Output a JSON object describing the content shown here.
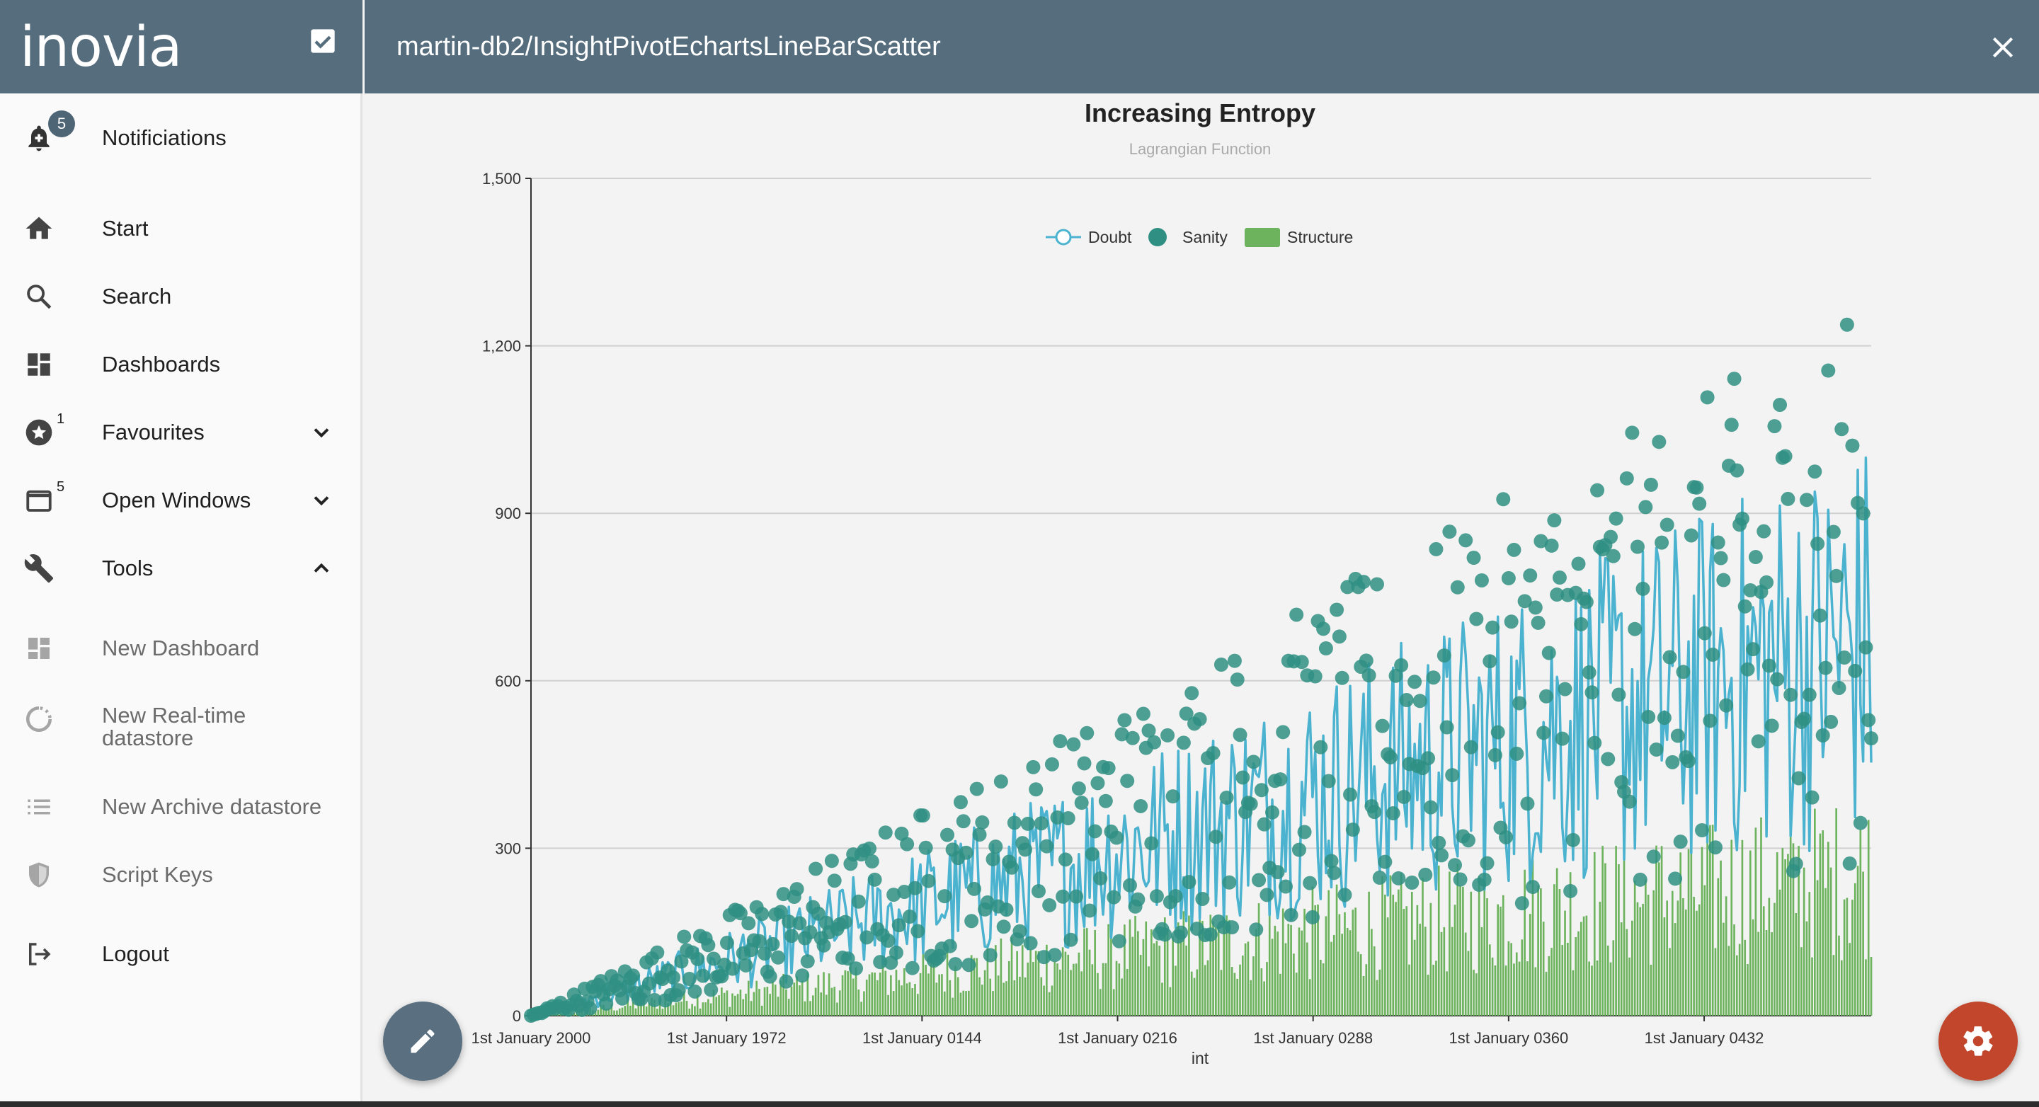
{
  "sidebar": {
    "logo": "inovia",
    "notifications": {
      "label": "Notificiations",
      "badge": "5"
    },
    "items": [
      {
        "label": "Start",
        "icon": "home-icon"
      },
      {
        "label": "Search",
        "icon": "search-icon"
      },
      {
        "label": "Dashboards",
        "icon": "dashboard-icon"
      },
      {
        "label": "Favourites",
        "icon": "star-icon",
        "badge": "1"
      },
      {
        "label": "Open Windows",
        "icon": "window-icon",
        "badge": "5"
      },
      {
        "label": "Tools",
        "icon": "wrench-icon"
      }
    ],
    "tools": [
      {
        "label": "New Dashboard",
        "icon": "dashboard-icon"
      },
      {
        "label": "New Real-time datastore",
        "line1": "New Real-time",
        "line2": "datastore",
        "icon": "refresh-icon"
      },
      {
        "label": "New Archive datastore",
        "icon": "list-icon"
      },
      {
        "label": "Script Keys",
        "icon": "shield-icon"
      }
    ],
    "logout": "Logout"
  },
  "header": {
    "title": "martin-db2/InsightPivotEchartsLineBarScatter"
  },
  "colors": {
    "header_bg": "#566d7d",
    "doubt": "#4bb3cf",
    "sanity": "#2f8f83",
    "structure": "#6db35e",
    "settings_fab": "#c2462b"
  },
  "chart_data": {
    "type": "line",
    "title": "Increasing Entropy",
    "subtitle": "Lagrangian Function",
    "xlabel": "int",
    "ylabel": "",
    "ylim": [
      0,
      1500
    ],
    "yticks": [
      "0",
      "300",
      "600",
      "900",
      "1,200",
      "1,500"
    ],
    "xticks": [
      "1st January 2000",
      "1st January 1972",
      "1st January 0144",
      "1st January 0216",
      "1st January 0288",
      "1st January 0360",
      "1st January 0432"
    ],
    "n_points": 500,
    "legend": [
      {
        "name": "Doubt",
        "type": "line"
      },
      {
        "name": "Sanity",
        "type": "scatter"
      },
      {
        "name": "Structure",
        "type": "bar"
      }
    ],
    "series_params": {
      "doubt": {
        "slope": 1.35,
        "noise_rel": 0.55
      },
      "sanity": {
        "slope": 1.55,
        "noise_rel": 0.65
      },
      "structure": {
        "slope": 0.5,
        "noise_rel": 0.6
      }
    }
  }
}
